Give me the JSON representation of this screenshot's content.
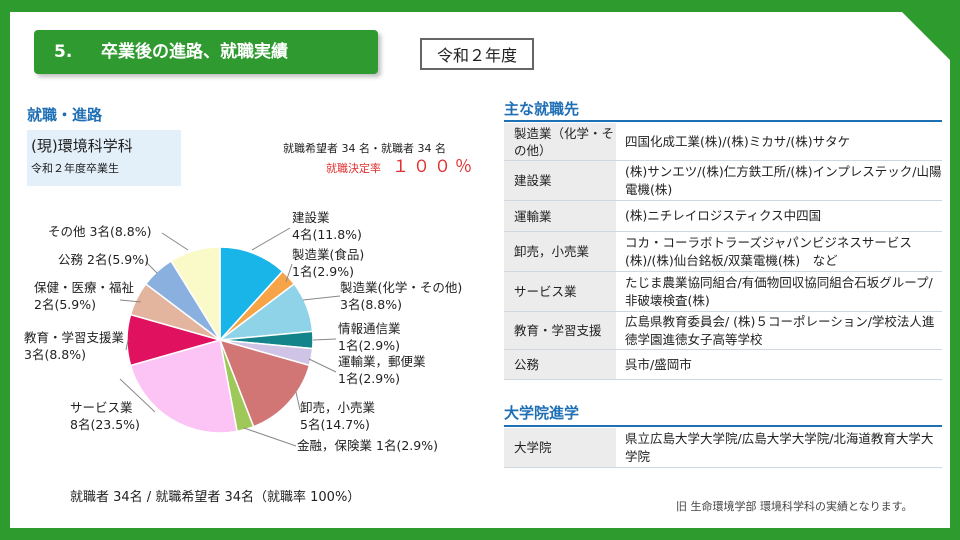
{
  "header": {
    "section_number": "5.",
    "section_title": "卒業後の進路、就職実績",
    "year": "令和２年度"
  },
  "left": {
    "heading": "就職・進路",
    "department": "(現)環境科学科",
    "graduation_year": "令和２年度卒業生",
    "hopeful_line": "就職希望者 34 名・就職者 34 名",
    "decision_rate_label": "就職決定率",
    "decision_rate_value": "１００％",
    "summary": "就職者 34名 / 就職希望者 34名（就職率 100%）"
  },
  "chart_data": {
    "type": "pie",
    "slices": [
      {
        "label": "建設業",
        "count": 4,
        "value_text": "4名(11.8%)",
        "percent": 11.8,
        "color": "#19b4e8"
      },
      {
        "label": "製造業(食品)",
        "count": 1,
        "value_text": "1名(2.9%)",
        "percent": 2.9,
        "color": "#f7a449"
      },
      {
        "label": "製造業(化学・その他)",
        "count": 3,
        "value_text": "3名(8.8%)",
        "percent": 8.8,
        "color": "#8fd3e8"
      },
      {
        "label": "情報通信業",
        "count": 1,
        "value_text": "1名(2.9%)",
        "percent": 2.9,
        "color": "#13848a"
      },
      {
        "label": "運輸業，郵便業",
        "count": 1,
        "value_text": "1名(2.9%)",
        "percent": 2.9,
        "color": "#cfc3e6"
      },
      {
        "label": "卸売，小売業",
        "count": 5,
        "value_text": "5名(14.7%)",
        "percent": 14.7,
        "color": "#d27575"
      },
      {
        "label": "金融，保険業",
        "count": 1,
        "value_text": "1名(2.9%)",
        "percent": 2.9,
        "color": "#9ec85a"
      },
      {
        "label": "サービス業",
        "count": 8,
        "value_text": "8名(23.5%)",
        "percent": 23.5,
        "color": "#fcc3f5"
      },
      {
        "label": "教育・学習支援業",
        "count": 3,
        "value_text": "3名(8.8%)",
        "percent": 8.8,
        "color": "#e0125f"
      },
      {
        "label": "保健・医療・福祉",
        "count": 2,
        "value_text": "2名(5.9%)",
        "percent": 5.9,
        "color": "#e3b49e"
      },
      {
        "label": "公務",
        "count": 2,
        "value_text": "2名(5.9%)",
        "percent": 5.9,
        "color": "#8ab0e0"
      },
      {
        "label": "その他",
        "count": 3,
        "value_text": "3名(8.8%)",
        "percent": 8.8,
        "color": "#fafac8"
      }
    ]
  },
  "employers": {
    "heading": "主な就職先",
    "rows": [
      {
        "category": "製造業（化学・その他）",
        "value": "四国化成工業(株)/(株)ミカサ/(株)サタケ"
      },
      {
        "category": "建設業",
        "value": "(株)サンエツ/(株)仁方鉄工所/(株)インプレステック/山陽電機(株)"
      },
      {
        "category": "運輸業",
        "value": "(株)ニチレイロジスティクス中四国"
      },
      {
        "category": "卸売，小売業",
        "value": "コカ・コーラボトラーズジャパンビジネスサービス(株)/(株)仙台銘板/双葉電機(株)　など"
      },
      {
        "category": "サービス業",
        "value": "たじま農業協同組合/有価物回収協同組合石坂グループ/非破壊検査(株)"
      },
      {
        "category": "教育・学習支援",
        "value": "広島県教育委員会/ (株)５コーポレーション/学校法人進徳学園進徳女子高等学校"
      },
      {
        "category": "公務",
        "value": "呉市/盛岡市"
      }
    ]
  },
  "graduate_school": {
    "heading": "大学院進学",
    "rows": [
      {
        "category": "大学院",
        "value": "県立広島大学大学院/広島大学大学院/北海道教育大学大学院"
      }
    ]
  },
  "footnote": "旧 生命環境学部 環境科学科の実績となります。",
  "colors": {
    "frame": "#2e9b2e",
    "accent_blue": "#1f6fb5",
    "rate_red": "#e03030"
  }
}
